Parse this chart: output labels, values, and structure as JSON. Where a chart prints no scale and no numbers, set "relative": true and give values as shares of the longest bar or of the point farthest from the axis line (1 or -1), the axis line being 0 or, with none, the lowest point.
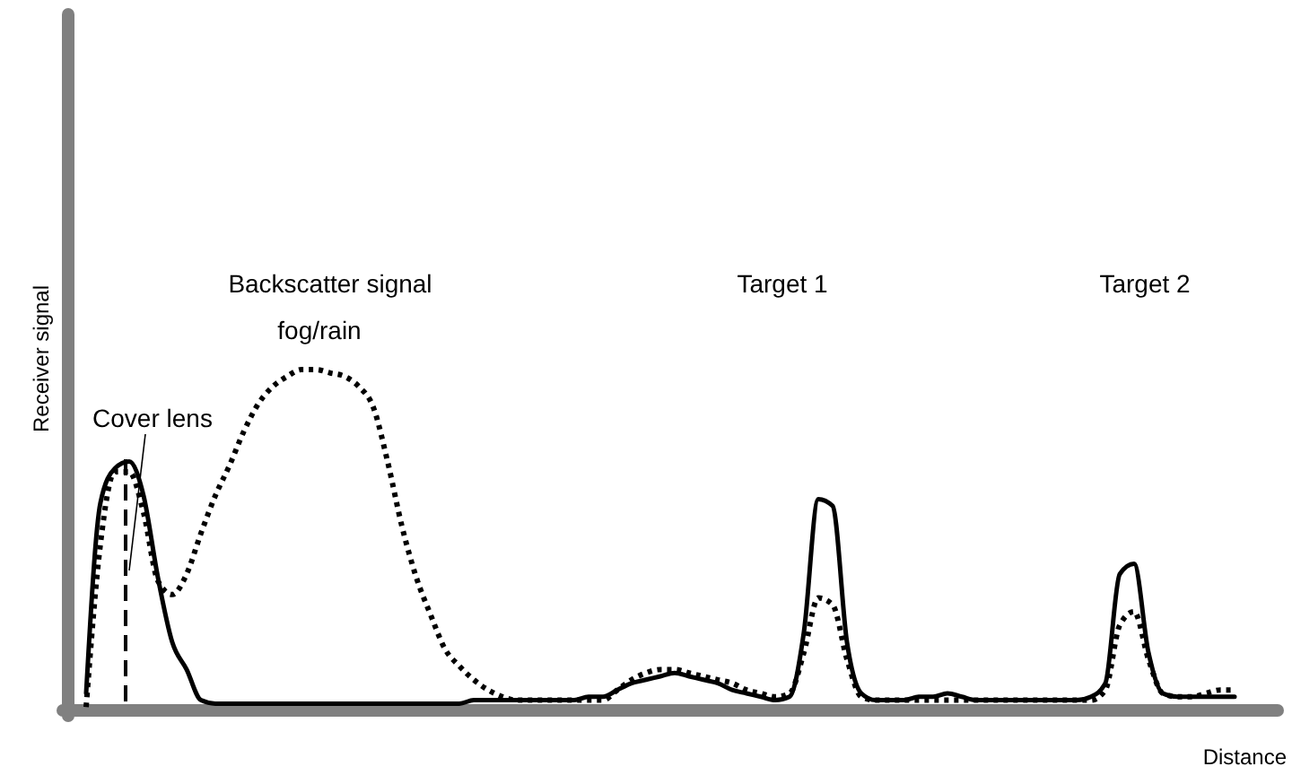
{
  "chart_data": {
    "type": "line",
    "relative": true,
    "xlabel": "Distance",
    "ylabel": "Receiver signal",
    "annotations": [
      "Backscatter signal",
      "fog/rain",
      "Cover lens",
      "Target 1",
      "Target 2"
    ],
    "categories": [
      null,
      null,
      null,
      null,
      null,
      null,
      null,
      null,
      null,
      null,
      null,
      null,
      null,
      null,
      null,
      null,
      null,
      null,
      null,
      null,
      null,
      null,
      null,
      null,
      null,
      null,
      null,
      null,
      null,
      null,
      null,
      null,
      null,
      null,
      null,
      null,
      null,
      null,
      null,
      null,
      null,
      null,
      null,
      null,
      null,
      null,
      null,
      null,
      null,
      null,
      null,
      null,
      null,
      null,
      null,
      null,
      null,
      null,
      null,
      null,
      null,
      null,
      null,
      null,
      null,
      null,
      null,
      null,
      null,
      null,
      null,
      null,
      null,
      null,
      null,
      null,
      null,
      null,
      null,
      null,
      null
    ],
    "series": [
      {
        "color": "#000000",
        "line_style": "solid",
        "values": [
          0.05,
          0.61,
          0.71,
          0.73,
          0.63,
          0.39,
          0.2,
          0.12,
          0.03,
          0.02,
          0.02,
          0.02,
          0.02,
          0.02,
          0.02,
          0.02,
          0.02,
          0.02,
          0.02,
          0.02,
          0.02,
          0.02,
          0.02,
          0.02,
          0.02,
          0.02,
          0.02,
          0.03,
          0.03,
          0.03,
          0.03,
          0.03,
          0.03,
          0.03,
          0.03,
          0.04,
          0.04,
          0.06,
          0.08,
          0.09,
          0.1,
          0.11,
          0.1,
          0.09,
          0.08,
          0.06,
          0.05,
          0.04,
          0.03,
          0.04,
          0.23,
          0.62,
          0.6,
          0.2,
          0.05,
          0.03,
          0.03,
          0.03,
          0.04,
          0.04,
          0.05,
          0.04,
          0.03,
          0.03,
          0.03,
          0.03,
          0.03,
          0.03,
          0.03,
          0.03,
          0.04,
          0.08,
          0.4,
          0.43,
          0.17,
          0.05,
          0.04,
          0.04,
          0.04,
          0.04,
          0.04
        ]
      },
      {
        "color": "#000000",
        "line_style": "dotted",
        "values": [
          0.01,
          0.49,
          0.7,
          0.7,
          0.58,
          0.38,
          0.34,
          0.4,
          0.52,
          0.63,
          0.72,
          0.82,
          0.9,
          0.95,
          0.98,
          1,
          1,
          0.99,
          0.98,
          0.95,
          0.89,
          0.73,
          0.54,
          0.39,
          0.28,
          0.18,
          0.13,
          0.09,
          0.06,
          0.04,
          0.03,
          0.03,
          0.03,
          0.03,
          0.03,
          0.03,
          0.03,
          0.06,
          0.09,
          0.11,
          0.12,
          0.12,
          0.11,
          0.1,
          0.09,
          0.08,
          0.06,
          0.05,
          0.04,
          0.05,
          0.17,
          0.33,
          0.31,
          0.15,
          0.04,
          0.03,
          0.03,
          0.03,
          0.03,
          0.03,
          0.03,
          0.03,
          0.03,
          0.03,
          0.03,
          0.03,
          0.03,
          0.03,
          0.03,
          0.03,
          0.03,
          0.06,
          0.25,
          0.29,
          0.15,
          0.05,
          0.04,
          0.04,
          0.05,
          0.06,
          0.06
        ]
      }
    ]
  }
}
